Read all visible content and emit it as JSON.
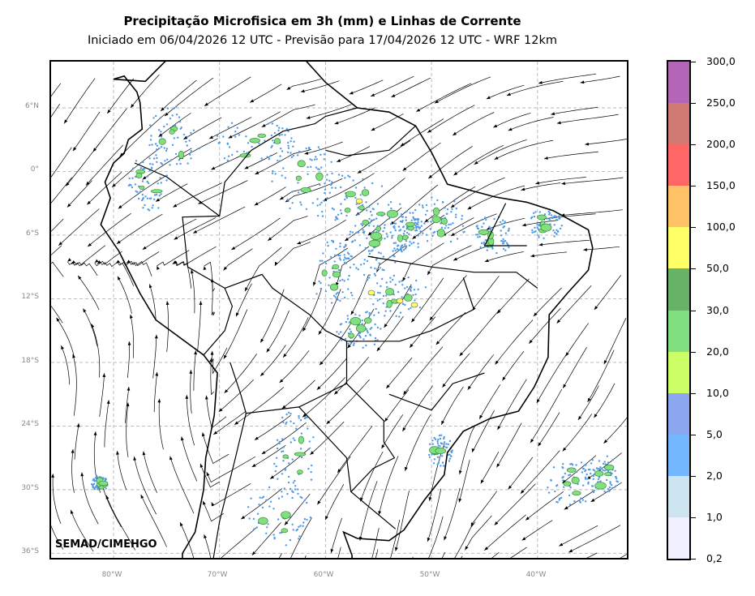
{
  "title": "Precipitação Microfisica em 3h (mm) e Linhas de Corrente",
  "subtitle": "Iniciado em 06/04/2026 12 UTC - Previsão para 17/04/2026 12 UTC - WRF 12km",
  "credit": "SEMAD/CIMEHGO",
  "map": {
    "lat_labels": [
      "6°N",
      "0°",
      "6°S",
      "12°S",
      "18°S",
      "24°S",
      "30°S",
      "36°S"
    ],
    "lon_labels": [
      "80°W",
      "70°W",
      "60°W",
      "50°W",
      "40°W"
    ],
    "gridlines": true
  },
  "colorbar": {
    "labels": [
      "300,0",
      "250,0",
      "200,0",
      "150,0",
      "100,0",
      "50,0",
      "30,0",
      "20,0",
      "10,0",
      "5,0",
      "2,0",
      "1,0",
      "0,2"
    ],
    "colors": [
      "#b366b8",
      "#d07a74",
      "#ff6666",
      "#ffc266",
      "#ffff66",
      "#66b266",
      "#80e080",
      "#ccff66",
      "#8ca6f0",
      "#73b8ff",
      "#cce5f0",
      "#f0f0ff"
    ]
  }
}
